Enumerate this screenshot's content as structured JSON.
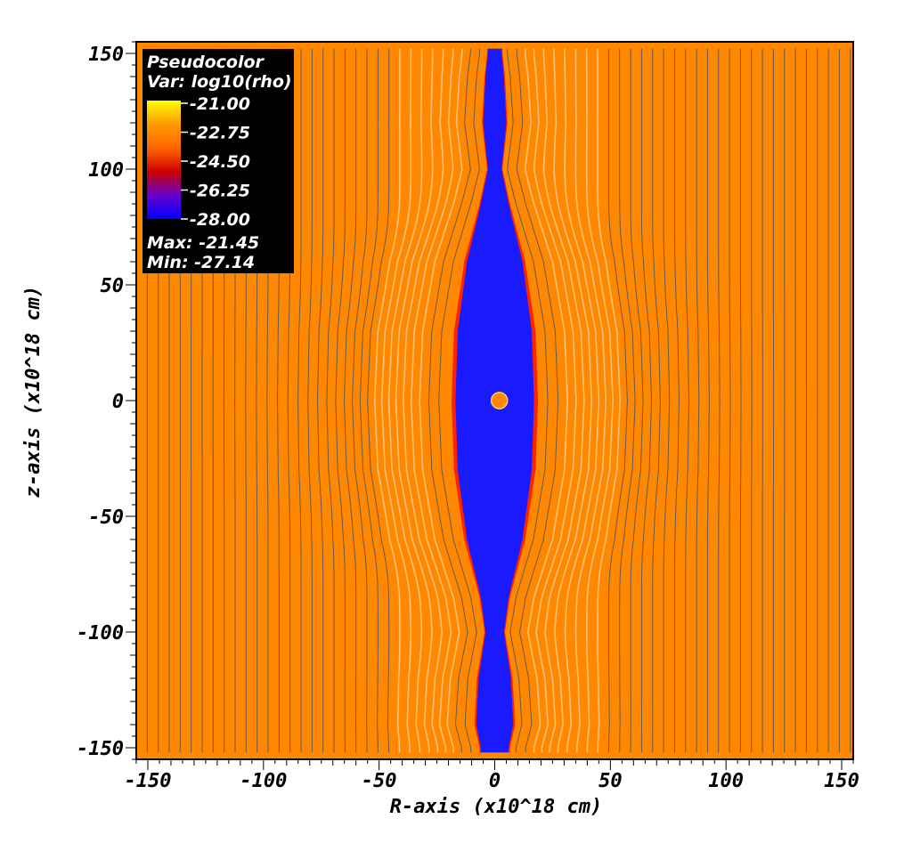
{
  "chart_data": {
    "type": "heatmap",
    "xlabel": "R-axis (x10^18 cm)",
    "ylabel": "z-axis (x10^18 cm)",
    "xlim": [
      -155,
      155
    ],
    "ylim": [
      -155,
      155
    ],
    "xticks": [
      -150,
      -100,
      -50,
      0,
      50,
      100,
      150
    ],
    "yticks": [
      -150,
      -100,
      -50,
      0,
      50,
      100,
      150
    ],
    "xtick_labels": [
      "-150",
      "-100",
      "-50",
      "0",
      "50",
      "100",
      "150"
    ],
    "ytick_labels": [
      "-150",
      "-100",
      "-50",
      "0",
      "50",
      "100",
      "150"
    ],
    "legend": {
      "title": "Pseudocolor",
      "variable": "Var: log10(rho)",
      "levels": [
        "-21.00",
        "-22.75",
        "-24.50",
        "-26.25",
        "-28.00"
      ],
      "max_label": "Max: -21.45",
      "min_label": "Min: -27.14",
      "placement": "top-left"
    },
    "colormap": [
      "#0000ff",
      "#6600cc",
      "#cc0000",
      "#ff6600",
      "#ff9900",
      "#ffff00"
    ],
    "background_value": -22.9,
    "background_color": "#ff8800",
    "cavity": {
      "inner_value": -27.0,
      "inner_color": "#1a1aff",
      "rim_color": "#ff2200",
      "width_profile": [
        {
          "z": -150,
          "half_width": 6
        },
        {
          "z": -140,
          "half_width": 8
        },
        {
          "z": -120,
          "half_width": 7
        },
        {
          "z": -100,
          "half_width": 4
        },
        {
          "z": -85,
          "half_width": 6
        },
        {
          "z": -60,
          "half_width": 12
        },
        {
          "z": -30,
          "half_width": 16
        },
        {
          "z": 0,
          "half_width": 17
        },
        {
          "z": 30,
          "half_width": 16
        },
        {
          "z": 60,
          "half_width": 12
        },
        {
          "z": 85,
          "half_width": 6
        },
        {
          "z": 100,
          "half_width": 3
        },
        {
          "z": 120,
          "half_width": 5
        },
        {
          "z": 140,
          "half_width": 4
        },
        {
          "z": 150,
          "half_width": 3
        }
      ]
    },
    "central_source": {
      "r": 2,
      "z": 0,
      "radius": 3.5,
      "color": "#ff8800"
    },
    "field_lines": {
      "spacing": 4.75,
      "color": "#555555",
      "highlight_color": "#ffcc88"
    }
  }
}
